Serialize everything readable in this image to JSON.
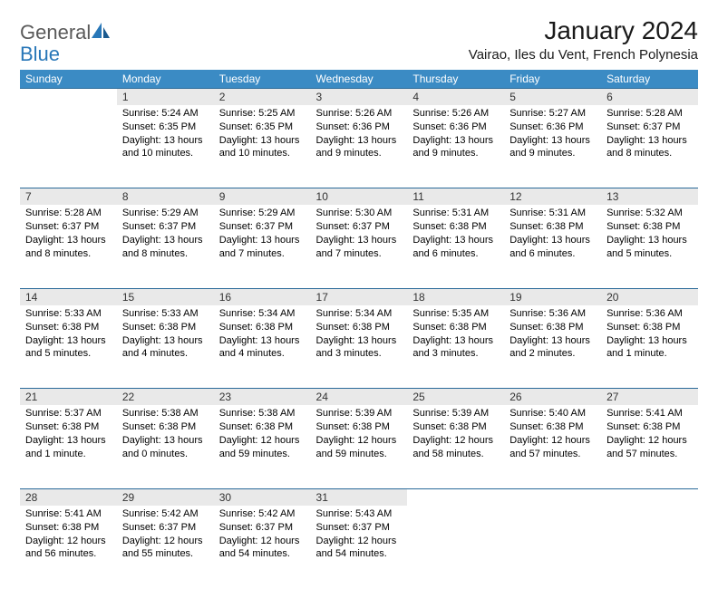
{
  "brand": {
    "word1": "General",
    "word2": "Blue"
  },
  "title": "January 2024",
  "location": "Vairao, Iles du Vent, French Polynesia",
  "colors": {
    "header_bg": "#3b8bc4",
    "header_rule": "#2a6a99",
    "daynum_bg": "#e9e9e9",
    "brand_gray": "#5a5a5a",
    "brand_blue": "#2877b8"
  },
  "weekdays": [
    "Sunday",
    "Monday",
    "Tuesday",
    "Wednesday",
    "Thursday",
    "Friday",
    "Saturday"
  ],
  "weeks": [
    [
      null,
      {
        "n": "1",
        "sr": "5:24 AM",
        "ss": "6:35 PM",
        "dl": "13 hours and 10 minutes."
      },
      {
        "n": "2",
        "sr": "5:25 AM",
        "ss": "6:35 PM",
        "dl": "13 hours and 10 minutes."
      },
      {
        "n": "3",
        "sr": "5:26 AM",
        "ss": "6:36 PM",
        "dl": "13 hours and 9 minutes."
      },
      {
        "n": "4",
        "sr": "5:26 AM",
        "ss": "6:36 PM",
        "dl": "13 hours and 9 minutes."
      },
      {
        "n": "5",
        "sr": "5:27 AM",
        "ss": "6:36 PM",
        "dl": "13 hours and 9 minutes."
      },
      {
        "n": "6",
        "sr": "5:28 AM",
        "ss": "6:37 PM",
        "dl": "13 hours and 8 minutes."
      }
    ],
    [
      {
        "n": "7",
        "sr": "5:28 AM",
        "ss": "6:37 PM",
        "dl": "13 hours and 8 minutes."
      },
      {
        "n": "8",
        "sr": "5:29 AM",
        "ss": "6:37 PM",
        "dl": "13 hours and 8 minutes."
      },
      {
        "n": "9",
        "sr": "5:29 AM",
        "ss": "6:37 PM",
        "dl": "13 hours and 7 minutes."
      },
      {
        "n": "10",
        "sr": "5:30 AM",
        "ss": "6:37 PM",
        "dl": "13 hours and 7 minutes."
      },
      {
        "n": "11",
        "sr": "5:31 AM",
        "ss": "6:38 PM",
        "dl": "13 hours and 6 minutes."
      },
      {
        "n": "12",
        "sr": "5:31 AM",
        "ss": "6:38 PM",
        "dl": "13 hours and 6 minutes."
      },
      {
        "n": "13",
        "sr": "5:32 AM",
        "ss": "6:38 PM",
        "dl": "13 hours and 5 minutes."
      }
    ],
    [
      {
        "n": "14",
        "sr": "5:33 AM",
        "ss": "6:38 PM",
        "dl": "13 hours and 5 minutes."
      },
      {
        "n": "15",
        "sr": "5:33 AM",
        "ss": "6:38 PM",
        "dl": "13 hours and 4 minutes."
      },
      {
        "n": "16",
        "sr": "5:34 AM",
        "ss": "6:38 PM",
        "dl": "13 hours and 4 minutes."
      },
      {
        "n": "17",
        "sr": "5:34 AM",
        "ss": "6:38 PM",
        "dl": "13 hours and 3 minutes."
      },
      {
        "n": "18",
        "sr": "5:35 AM",
        "ss": "6:38 PM",
        "dl": "13 hours and 3 minutes."
      },
      {
        "n": "19",
        "sr": "5:36 AM",
        "ss": "6:38 PM",
        "dl": "13 hours and 2 minutes."
      },
      {
        "n": "20",
        "sr": "5:36 AM",
        "ss": "6:38 PM",
        "dl": "13 hours and 1 minute."
      }
    ],
    [
      {
        "n": "21",
        "sr": "5:37 AM",
        "ss": "6:38 PM",
        "dl": "13 hours and 1 minute."
      },
      {
        "n": "22",
        "sr": "5:38 AM",
        "ss": "6:38 PM",
        "dl": "13 hours and 0 minutes."
      },
      {
        "n": "23",
        "sr": "5:38 AM",
        "ss": "6:38 PM",
        "dl": "12 hours and 59 minutes."
      },
      {
        "n": "24",
        "sr": "5:39 AM",
        "ss": "6:38 PM",
        "dl": "12 hours and 59 minutes."
      },
      {
        "n": "25",
        "sr": "5:39 AM",
        "ss": "6:38 PM",
        "dl": "12 hours and 58 minutes."
      },
      {
        "n": "26",
        "sr": "5:40 AM",
        "ss": "6:38 PM",
        "dl": "12 hours and 57 minutes."
      },
      {
        "n": "27",
        "sr": "5:41 AM",
        "ss": "6:38 PM",
        "dl": "12 hours and 57 minutes."
      }
    ],
    [
      {
        "n": "28",
        "sr": "5:41 AM",
        "ss": "6:38 PM",
        "dl": "12 hours and 56 minutes."
      },
      {
        "n": "29",
        "sr": "5:42 AM",
        "ss": "6:37 PM",
        "dl": "12 hours and 55 minutes."
      },
      {
        "n": "30",
        "sr": "5:42 AM",
        "ss": "6:37 PM",
        "dl": "12 hours and 54 minutes."
      },
      {
        "n": "31",
        "sr": "5:43 AM",
        "ss": "6:37 PM",
        "dl": "12 hours and 54 minutes."
      },
      null,
      null,
      null
    ]
  ],
  "labels": {
    "sunrise": "Sunrise:",
    "sunset": "Sunset:",
    "daylight": "Daylight:"
  }
}
